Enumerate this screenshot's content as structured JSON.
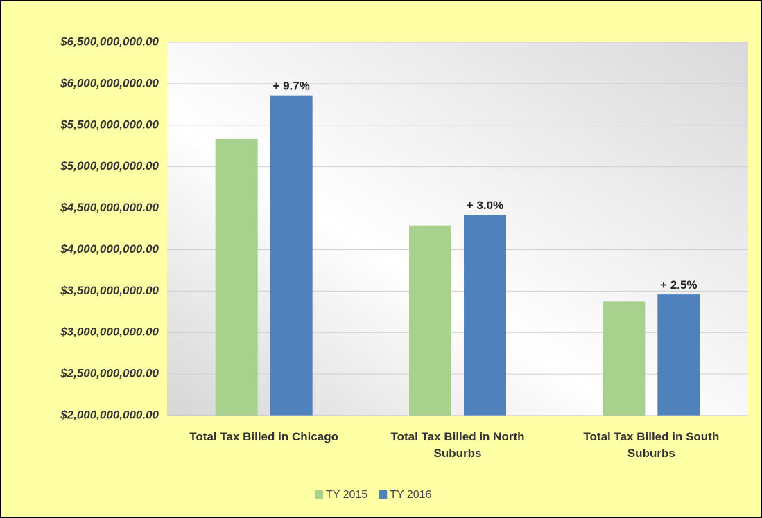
{
  "chart_data": {
    "type": "bar",
    "categories": [
      "Total Tax Billed in Chicago",
      "Total Tax Billed in North Suburbs",
      "Total Tax Billed in South Suburbs"
    ],
    "series": [
      {
        "name": "TY 2015",
        "color": "#a9d18e",
        "values": [
          5340000000,
          4290000000,
          3375000000
        ]
      },
      {
        "name": "TY 2016",
        "color": "#4f81bd",
        "values": [
          5860000000,
          4420000000,
          3460000000
        ],
        "change_labels": [
          "+ 9.7%",
          "+ 3.0%",
          "+ 2.5%"
        ]
      }
    ],
    "ylim": [
      2000000000,
      6500000000
    ],
    "yticks": [
      {
        "value": 2000000000,
        "label": "$2,000,000,000.00"
      },
      {
        "value": 2500000000,
        "label": "$2,500,000,000.00"
      },
      {
        "value": 3000000000,
        "label": "$3,000,000,000.00"
      },
      {
        "value": 3500000000,
        "label": "$3,500,000,000.00"
      },
      {
        "value": 4000000000,
        "label": "$4,000,000,000.00"
      },
      {
        "value": 4500000000,
        "label": "$4,500,000,000.00"
      },
      {
        "value": 5000000000,
        "label": "$5,000,000,000.00"
      },
      {
        "value": 5500000000,
        "label": "$5,500,000,000.00"
      },
      {
        "value": 6000000000,
        "label": "$6,000,000,000.00"
      },
      {
        "value": 6500000000,
        "label": "$6,500,000,000.00"
      }
    ],
    "grid": true,
    "legend": "bottom"
  }
}
